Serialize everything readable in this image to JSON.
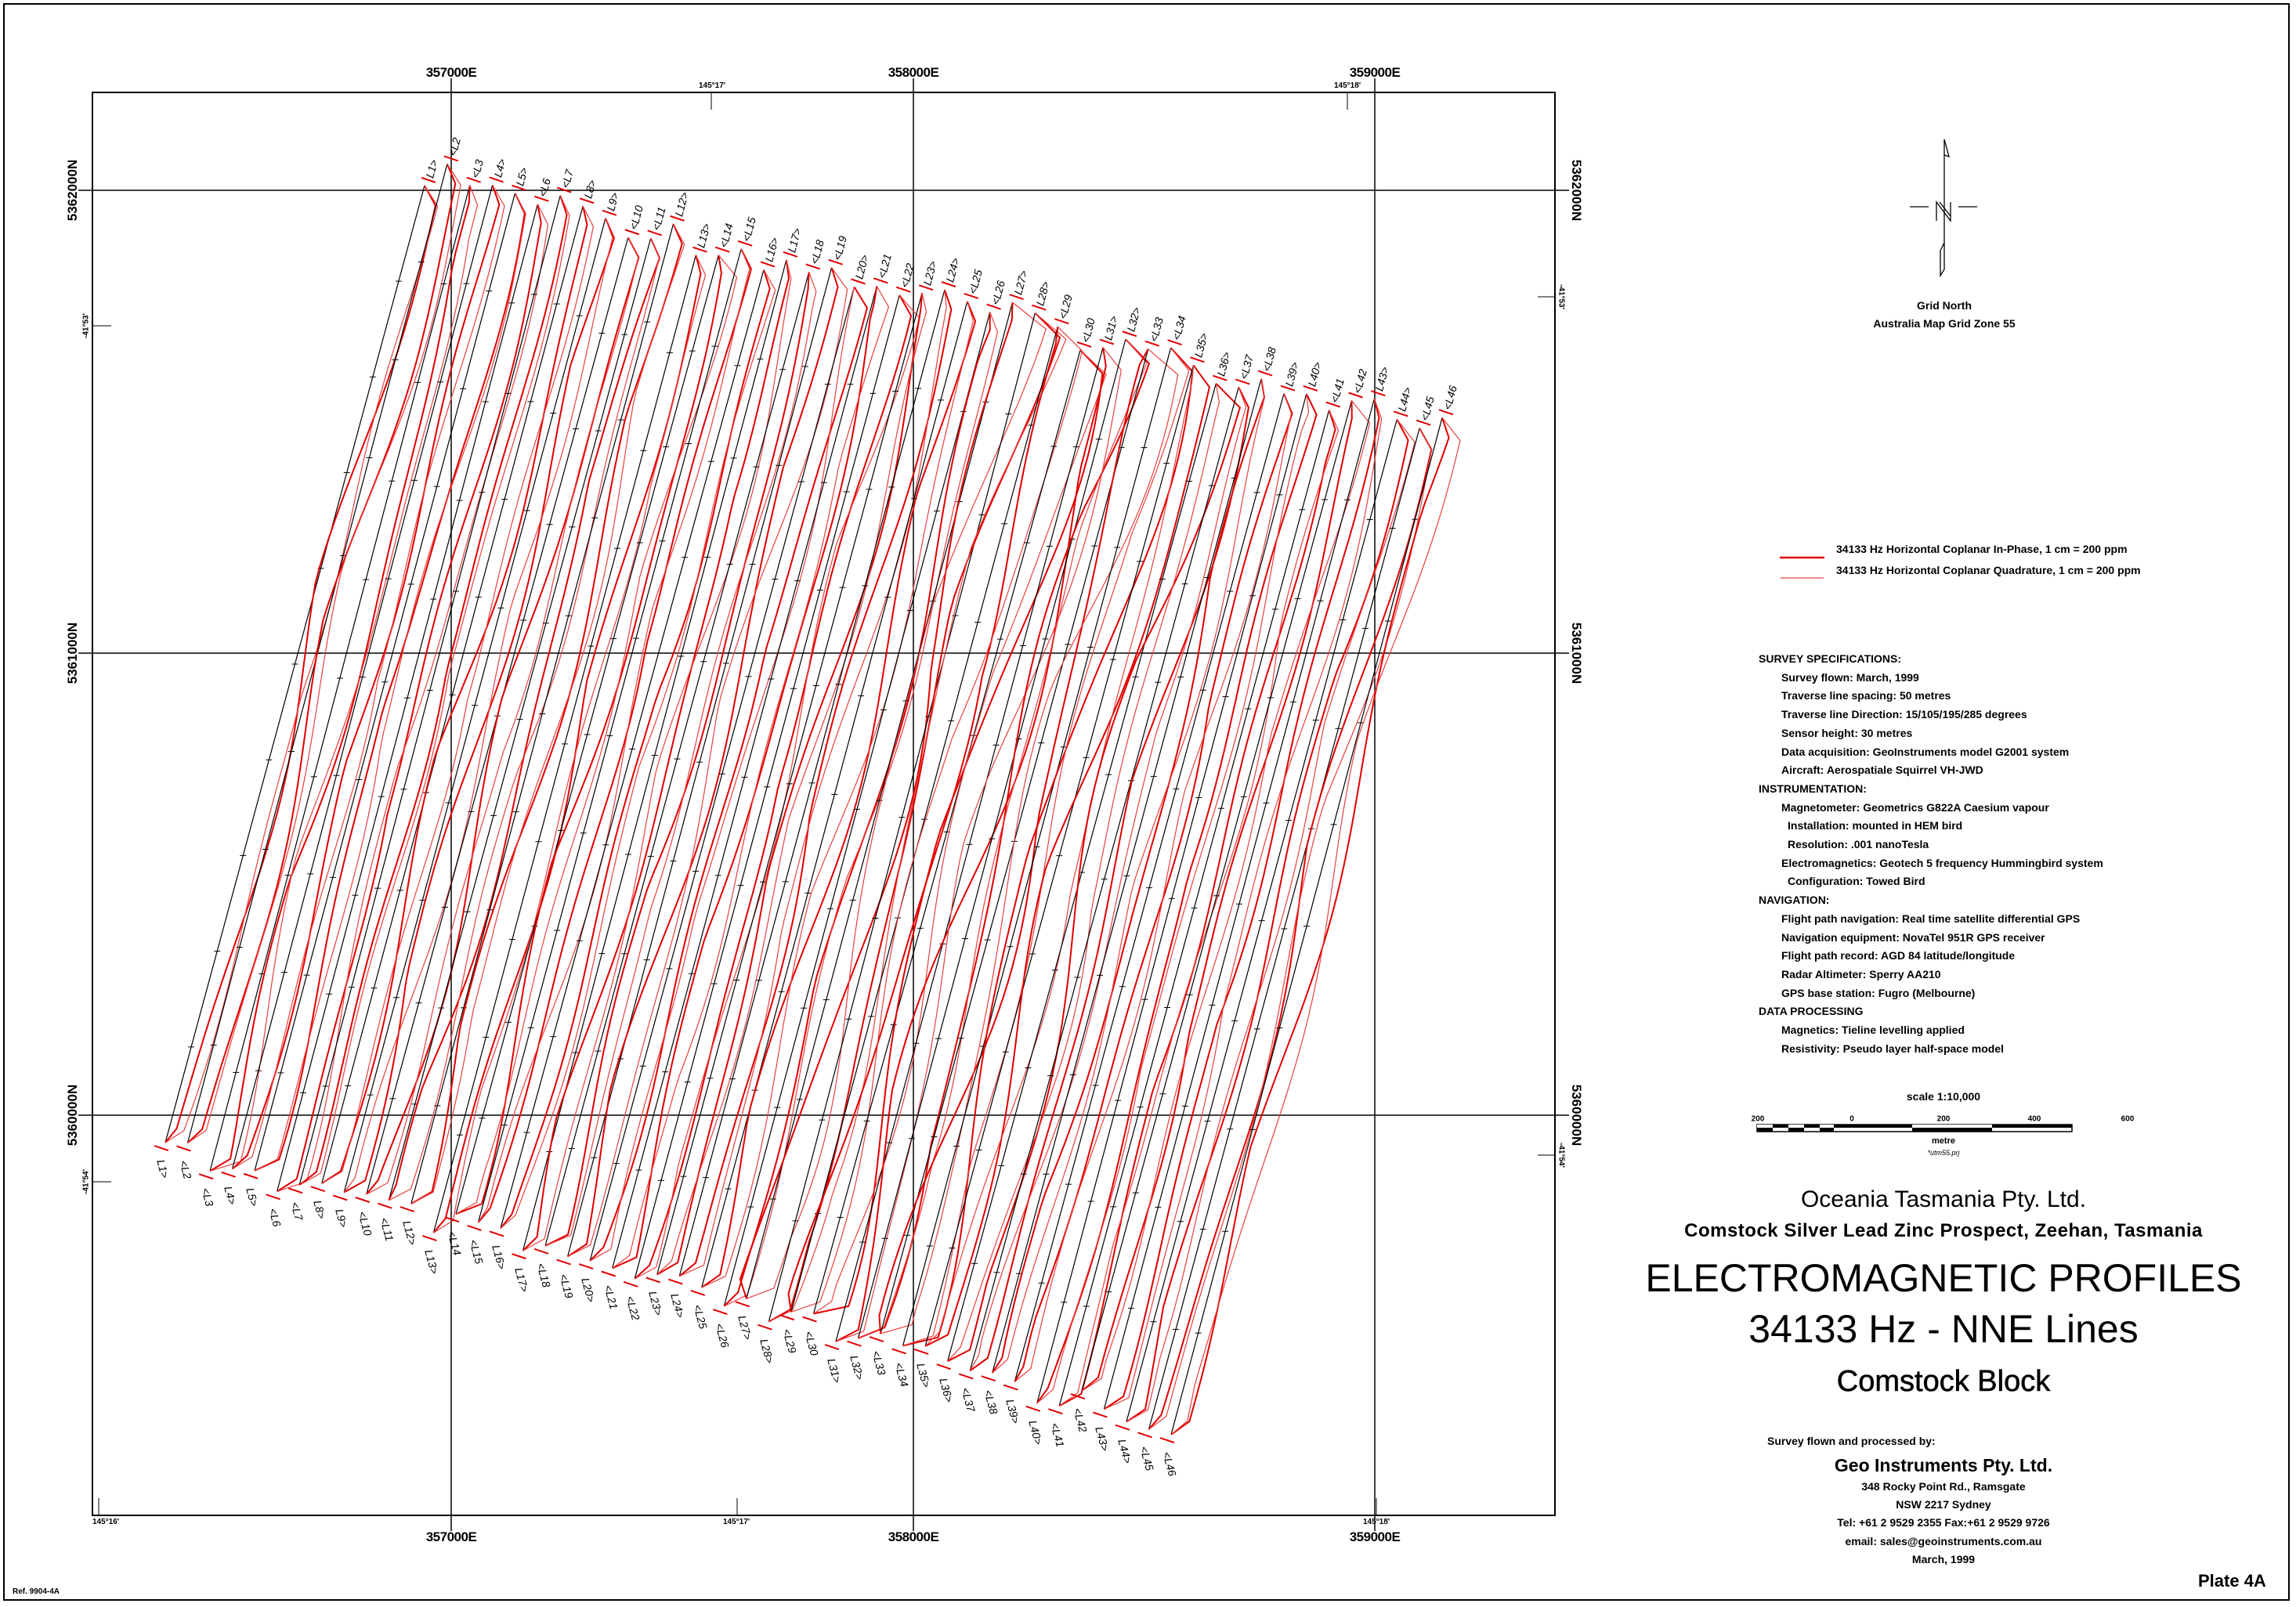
{
  "map": {
    "easting_labels": [
      "357000E",
      "358000E",
      "359000E"
    ],
    "northing_labels": [
      "5362000N",
      "5361000N",
      "5360000N"
    ],
    "longitude_top": [
      "145°17'",
      "145°18'"
    ],
    "longitude_bottom": [
      "145°16'",
      "145°17'",
      "145°18'"
    ],
    "latitude_left": [
      "-41°53'",
      "-41°54'"
    ],
    "latitude_right": [
      "-41°53'",
      "-41°54'"
    ],
    "line_labels": [
      "L1>",
      "<L2",
      "<L3",
      "L4>",
      "L5>",
      "<L6",
      "<L7",
      "L8>",
      "L9>",
      "<L10",
      "<L11",
      "L12>",
      "L13>",
      "<L14",
      "<L15",
      "L16>",
      "L17>",
      "<L18",
      "<L19",
      "L20>",
      "<L21",
      "<L22",
      "L23>",
      "L24>",
      "<L25",
      "<L26",
      "L27>",
      "L28>",
      "<L29",
      "<L30",
      "L31>",
      "L32>",
      "<L33",
      "<L34",
      "L35>",
      "L36>",
      "<L37",
      "<L38",
      "L39>",
      "L40>",
      "<L41",
      "<L42",
      "L43>",
      "L44>",
      "<L45",
      "<L46"
    ],
    "colors": {
      "flight_line": "#000000",
      "in_phase": "#e00000",
      "quadrature": "#e84040"
    }
  },
  "north_arrow": {
    "icon": "grid-north-arrow-icon",
    "title": "Grid North",
    "subtitle": "Australia Map Grid Zone 55"
  },
  "legend": [
    {
      "label": "34133 Hz Horizontal Coplanar In-Phase, 1 cm = 200 ppm",
      "color": "#e00000"
    },
    {
      "label": "34133 Hz Horizontal Coplanar Quadrature, 1 cm = 200 ppm",
      "color": "#e84040"
    }
  ],
  "specs": [
    {
      "text": "SURVEY SPECIFICATIONS:",
      "level": 0
    },
    {
      "text": "Survey flown: March, 1999",
      "level": 1
    },
    {
      "text": "Traverse line spacing: 50 metres",
      "level": 1
    },
    {
      "text": "Traverse line Direction: 15/105/195/285 degrees",
      "level": 1
    },
    {
      "text": "Sensor height: 30 metres",
      "level": 1
    },
    {
      "text": "Data acquisition: GeoInstruments model G2001 system",
      "level": 1
    },
    {
      "text": "Aircraft: Aerospatiale Squirrel VH-JWD",
      "level": 1
    },
    {
      "text": "INSTRUMENTATION:",
      "level": 0
    },
    {
      "text": "Magnetometer: Geometrics G822A Caesium vapour",
      "level": 1
    },
    {
      "text": "Installation: mounted in HEM bird",
      "level": 2
    },
    {
      "text": "Resolution: .001 nanoTesla",
      "level": 2
    },
    {
      "text": "Electromagnetics: Geotech 5 frequency Hummingbird system",
      "level": 1
    },
    {
      "text": "Configuration: Towed Bird",
      "level": 2
    },
    {
      "text": "NAVIGATION:",
      "level": 0
    },
    {
      "text": "Flight path navigation: Real time satellite differential GPS",
      "level": 1
    },
    {
      "text": "Navigation equipment: NovaTel 951R GPS receiver",
      "level": 1
    },
    {
      "text": "Flight path record: AGD 84 latitude/longitude",
      "level": 1
    },
    {
      "text": "Radar Altimeter: Sperry AA210",
      "level": 1
    },
    {
      "text": "GPS base station: Fugro (Melbourne)",
      "level": 1
    },
    {
      "text": "DATA PROCESSING",
      "level": 0
    },
    {
      "text": "Magnetics: Tieline levelling applied",
      "level": 1
    },
    {
      "text": "Resistivity: Pseudo layer half-space model",
      "level": 1
    }
  ],
  "scale": {
    "title": "scale 1:10,000",
    "ticks": [
      "200",
      "0",
      "200",
      "400",
      "600"
    ],
    "unit": "metre",
    "projection": "*utm55.prj"
  },
  "title_block": {
    "client": "Oceania Tasmania Pty. Ltd.",
    "project": "Comstock Silver Lead Zinc Prospect, Zeehan, Tasmania",
    "title": "ELECTROMAGNETIC PROFILES",
    "subtitle": "34133 Hz - NNE Lines",
    "block": "Comstock Block"
  },
  "contractor": {
    "intro": "Survey flown and processed by:",
    "name": "Geo Instruments Pty. Ltd.",
    "address1": "348 Rocky Point Rd., Ramsgate",
    "address2": "NSW 2217  Sydney",
    "phone": "Tel: +61 2 9529 2355  Fax:+61 2 9529 9726",
    "email": "email: sales@geoinstruments.com.au",
    "date": "March, 1999"
  },
  "plate": "Plate 4A",
  "ref": "Ref. 9904-4A"
}
